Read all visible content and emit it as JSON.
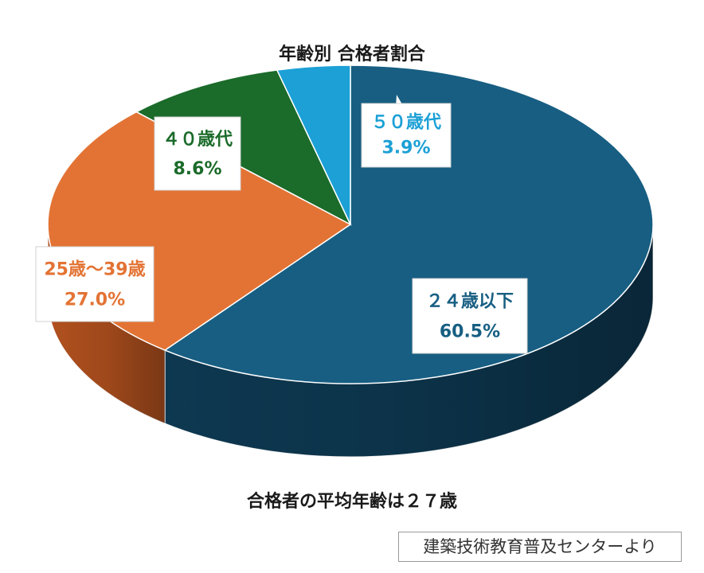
{
  "chart_data": {
    "type": "pie",
    "title": "年齢別 合格者割合",
    "subtitle": "合格者の平均年齢は２７歳",
    "slices": [
      {
        "name": "２４歳以下",
        "value": 60.5,
        "label": "60.5%",
        "color": "#175e82",
        "side_color": "#0e3b55"
      },
      {
        "name": "25歳～39歳",
        "value": 27.0,
        "label": "27.0%",
        "color": "#e37334",
        "side_color": "#bb5520"
      },
      {
        "name": "４０歳代",
        "value": 8.6,
        "label": "8.6%",
        "color": "#1b6b2a",
        "side_color": "#114a1c"
      },
      {
        "name": "５０歳代",
        "value": 3.9,
        "label": "3.9%",
        "color": "#1ca0d6",
        "side_color": "#1279a5"
      }
    ]
  },
  "source": "建築技術教育普及センターより"
}
